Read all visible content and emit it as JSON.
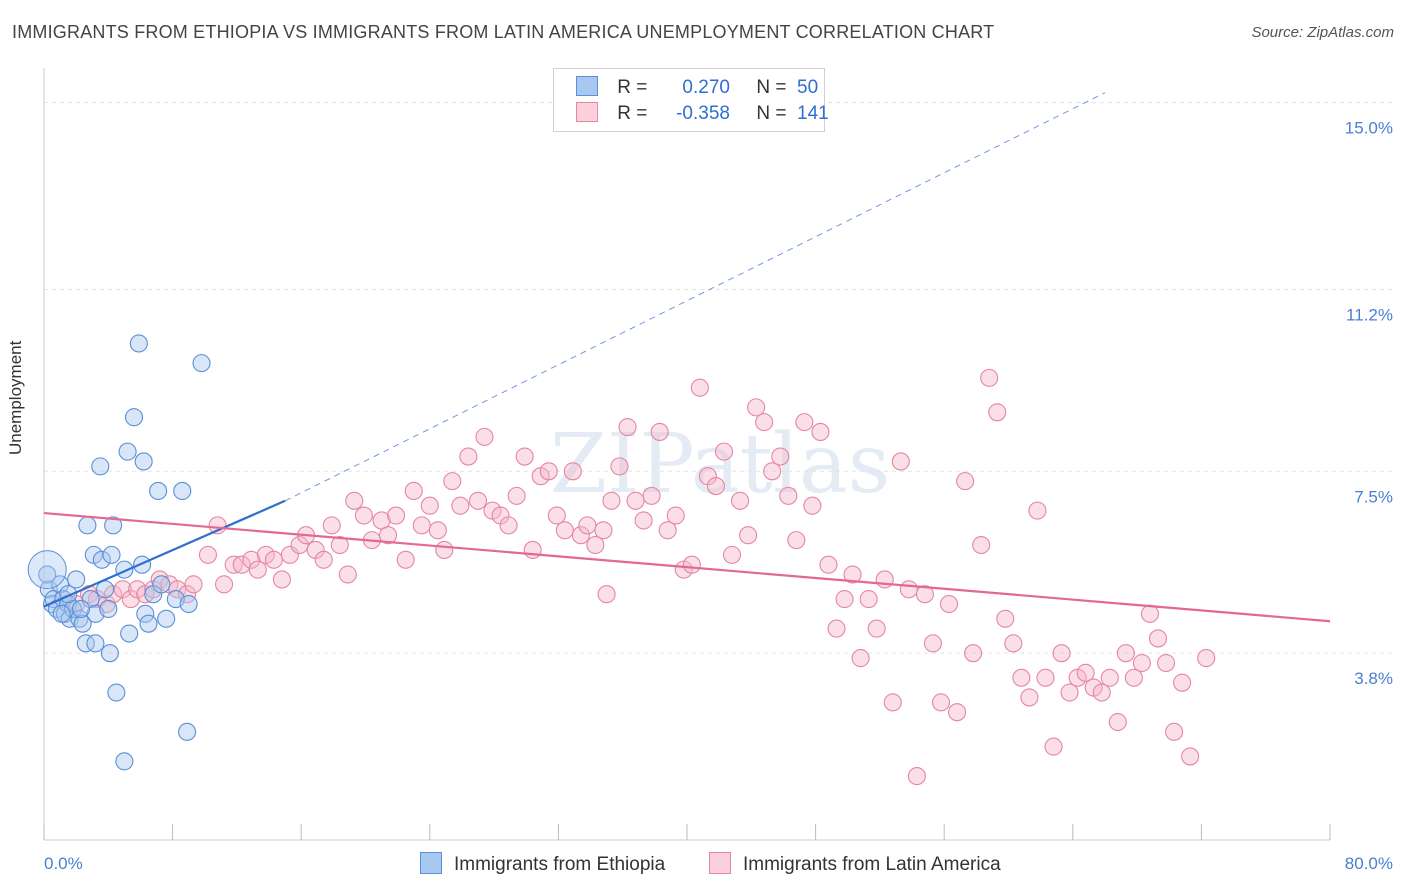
{
  "title": "IMMIGRANTS FROM ETHIOPIA VS IMMIGRANTS FROM LATIN AMERICA UNEMPLOYMENT CORRELATION CHART",
  "source": "Source: ZipAtlas.com",
  "colors": {
    "blue_fill": "#a9c8f0",
    "blue_stroke": "#5b8fd6",
    "blue_line": "#2f6fcf",
    "pink_fill": "#f5b8cb",
    "pink_stroke": "#e6869f",
    "pink_line": "#e36893",
    "tick": "#4a7fd0",
    "grid": "#e3e3e3"
  },
  "legend": {
    "rows": [
      {
        "r_label": "R =",
        "r_value": "0.270",
        "n_label": "N =",
        "n_value": "50"
      },
      {
        "r_label": "R =",
        "r_value": "-0.358",
        "n_label": "N =",
        "n_value": "141"
      }
    ]
  },
  "chart_data": {
    "type": "scatter",
    "title": "IMMIGRANTS FROM ETHIOPIA VS IMMIGRANTS FROM LATIN AMERICA UNEMPLOYMENT CORRELATION CHART",
    "xlabel": "",
    "ylabel": "Unemployment",
    "xlim": [
      0,
      80
    ],
    "ylim": [
      0,
      15.5
    ],
    "x_tick_labels": [
      "0.0%",
      "80.0%"
    ],
    "y_ticks": [
      {
        "value": 3.8,
        "label": "3.8%"
      },
      {
        "value": 7.5,
        "label": "7.5%"
      },
      {
        "value": 11.2,
        "label": "11.2%"
      },
      {
        "value": 15.0,
        "label": "15.0%"
      }
    ],
    "series": [
      {
        "name": "Immigrants from Ethiopia",
        "color": "blue",
        "R": 0.27,
        "N": 50,
        "trend": {
          "x0": 0.0,
          "y0": 4.75,
          "x1": 15.0,
          "y1": 6.9,
          "dashed_to_x": 66.0,
          "dashed_to_y": 15.2
        },
        "points": [
          [
            0.3,
            5.1
          ],
          [
            0.5,
            4.8
          ],
          [
            0.6,
            4.9
          ],
          [
            0.8,
            4.7
          ],
          [
            1.0,
            5.2
          ],
          [
            1.2,
            4.9
          ],
          [
            1.3,
            4.6
          ],
          [
            1.5,
            4.8
          ],
          [
            1.6,
            4.5
          ],
          [
            1.8,
            4.7
          ],
          [
            2.0,
            5.3
          ],
          [
            2.2,
            4.5
          ],
          [
            2.4,
            4.4
          ],
          [
            2.6,
            4.0
          ],
          [
            2.7,
            6.4
          ],
          [
            2.9,
            4.9
          ],
          [
            3.1,
            5.8
          ],
          [
            3.2,
            4.6
          ],
          [
            3.5,
            7.6
          ],
          [
            3.6,
            5.7
          ],
          [
            3.8,
            5.1
          ],
          [
            4.0,
            4.7
          ],
          [
            4.2,
            5.8
          ],
          [
            4.3,
            6.4
          ],
          [
            5.0,
            5.5
          ],
          [
            5.3,
            4.2
          ],
          [
            5.6,
            8.6
          ],
          [
            5.9,
            10.1
          ],
          [
            6.1,
            5.6
          ],
          [
            6.3,
            4.6
          ],
          [
            6.5,
            4.4
          ],
          [
            6.8,
            5.0
          ],
          [
            7.1,
            7.1
          ],
          [
            7.3,
            5.2
          ],
          [
            7.6,
            4.5
          ],
          [
            8.2,
            4.9
          ],
          [
            8.6,
            7.1
          ],
          [
            9.0,
            4.8
          ],
          [
            9.8,
            9.7
          ],
          [
            5.2,
            7.9
          ],
          [
            6.2,
            7.7
          ],
          [
            4.5,
            3.0
          ],
          [
            5.0,
            1.6
          ],
          [
            8.9,
            2.2
          ],
          [
            4.1,
            3.8
          ],
          [
            3.2,
            4.0
          ],
          [
            2.3,
            4.7
          ],
          [
            1.1,
            4.6
          ],
          [
            0.2,
            5.4
          ],
          [
            1.5,
            5.0
          ]
        ]
      },
      {
        "name": "Immigrants from Latin America",
        "color": "pink",
        "R": -0.358,
        "N": 141,
        "trend": {
          "x0": 0.0,
          "y0": 6.65,
          "x1": 80.0,
          "y1": 4.45
        },
        "points": [
          [
            1.2,
            4.9
          ],
          [
            2.0,
            4.8
          ],
          [
            2.8,
            5.0
          ],
          [
            3.3,
            4.9
          ],
          [
            3.9,
            4.8
          ],
          [
            4.3,
            5.0
          ],
          [
            4.9,
            5.1
          ],
          [
            5.4,
            4.9
          ],
          [
            5.8,
            5.1
          ],
          [
            6.3,
            5.0
          ],
          [
            6.8,
            5.1
          ],
          [
            7.2,
            5.3
          ],
          [
            7.8,
            5.2
          ],
          [
            8.3,
            5.1
          ],
          [
            8.9,
            5.0
          ],
          [
            9.3,
            5.2
          ],
          [
            10.2,
            5.8
          ],
          [
            10.8,
            6.4
          ],
          [
            11.2,
            5.2
          ],
          [
            11.8,
            5.6
          ],
          [
            12.3,
            5.6
          ],
          [
            12.9,
            5.7
          ],
          [
            13.3,
            5.5
          ],
          [
            13.8,
            5.8
          ],
          [
            14.3,
            5.7
          ],
          [
            14.8,
            5.3
          ],
          [
            15.3,
            5.8
          ],
          [
            15.9,
            6.0
          ],
          [
            16.3,
            6.2
          ],
          [
            16.9,
            5.9
          ],
          [
            17.4,
            5.7
          ],
          [
            17.9,
            6.4
          ],
          [
            18.4,
            6.0
          ],
          [
            18.9,
            5.4
          ],
          [
            19.3,
            6.9
          ],
          [
            19.9,
            6.6
          ],
          [
            20.4,
            6.1
          ],
          [
            21.0,
            6.5
          ],
          [
            21.4,
            6.2
          ],
          [
            21.9,
            6.6
          ],
          [
            22.5,
            5.7
          ],
          [
            23.0,
            7.1
          ],
          [
            23.5,
            6.4
          ],
          [
            24.0,
            6.8
          ],
          [
            24.5,
            6.3
          ],
          [
            24.9,
            5.9
          ],
          [
            25.4,
            7.3
          ],
          [
            25.9,
            6.8
          ],
          [
            26.4,
            7.8
          ],
          [
            27.0,
            6.9
          ],
          [
            27.4,
            8.2
          ],
          [
            27.9,
            6.7
          ],
          [
            28.4,
            6.6
          ],
          [
            28.9,
            6.4
          ],
          [
            29.4,
            7.0
          ],
          [
            29.9,
            7.8
          ],
          [
            30.4,
            5.9
          ],
          [
            30.9,
            7.4
          ],
          [
            31.4,
            7.5
          ],
          [
            31.9,
            6.6
          ],
          [
            32.4,
            6.3
          ],
          [
            32.9,
            7.5
          ],
          [
            33.4,
            6.2
          ],
          [
            33.8,
            6.4
          ],
          [
            34.3,
            6.0
          ],
          [
            34.8,
            6.3
          ],
          [
            35.3,
            6.9
          ],
          [
            35.8,
            7.6
          ],
          [
            36.3,
            8.4
          ],
          [
            36.8,
            6.9
          ],
          [
            37.3,
            6.5
          ],
          [
            37.8,
            7.0
          ],
          [
            38.3,
            8.3
          ],
          [
            38.8,
            6.3
          ],
          [
            39.3,
            6.6
          ],
          [
            39.8,
            5.5
          ],
          [
            40.3,
            5.6
          ],
          [
            40.8,
            9.2
          ],
          [
            41.3,
            7.4
          ],
          [
            41.8,
            7.2
          ],
          [
            42.3,
            7.9
          ],
          [
            42.8,
            5.8
          ],
          [
            43.3,
            6.9
          ],
          [
            43.8,
            6.2
          ],
          [
            44.3,
            8.8
          ],
          [
            44.8,
            8.5
          ],
          [
            45.3,
            7.5
          ],
          [
            45.8,
            7.8
          ],
          [
            46.3,
            7.0
          ],
          [
            46.8,
            6.1
          ],
          [
            47.3,
            8.5
          ],
          [
            47.8,
            6.8
          ],
          [
            48.3,
            8.3
          ],
          [
            48.8,
            5.6
          ],
          [
            49.3,
            4.3
          ],
          [
            49.8,
            4.9
          ],
          [
            50.3,
            5.4
          ],
          [
            50.8,
            3.7
          ],
          [
            51.3,
            4.9
          ],
          [
            51.8,
            4.3
          ],
          [
            52.3,
            5.3
          ],
          [
            52.8,
            2.8
          ],
          [
            53.3,
            7.7
          ],
          [
            53.8,
            5.1
          ],
          [
            54.3,
            1.3
          ],
          [
            54.8,
            5.0
          ],
          [
            55.3,
            4.0
          ],
          [
            55.8,
            2.8
          ],
          [
            56.3,
            4.8
          ],
          [
            56.8,
            2.6
          ],
          [
            57.3,
            7.3
          ],
          [
            57.8,
            3.8
          ],
          [
            58.3,
            6.0
          ],
          [
            58.8,
            9.4
          ],
          [
            59.3,
            8.7
          ],
          [
            59.8,
            4.5
          ],
          [
            60.3,
            4.0
          ],
          [
            60.8,
            3.3
          ],
          [
            61.3,
            2.9
          ],
          [
            61.8,
            6.7
          ],
          [
            62.3,
            3.3
          ],
          [
            62.8,
            1.9
          ],
          [
            63.3,
            3.8
          ],
          [
            63.8,
            3.0
          ],
          [
            64.3,
            3.3
          ],
          [
            64.8,
            3.4
          ],
          [
            65.3,
            3.1
          ],
          [
            65.8,
            3.0
          ],
          [
            66.3,
            3.3
          ],
          [
            66.8,
            2.4
          ],
          [
            67.3,
            3.8
          ],
          [
            67.8,
            3.3
          ],
          [
            68.3,
            3.6
          ],
          [
            68.8,
            4.6
          ],
          [
            69.3,
            4.1
          ],
          [
            69.8,
            3.6
          ],
          [
            70.3,
            2.2
          ],
          [
            70.8,
            3.2
          ],
          [
            71.3,
            1.7
          ],
          [
            72.3,
            3.7
          ],
          [
            35.0,
            5.0
          ]
        ]
      }
    ]
  },
  "bottom_legend": {
    "items": [
      "Immigrants from Ethiopia",
      "Immigrants from Latin America"
    ]
  },
  "watermark": "ZIPatlas"
}
